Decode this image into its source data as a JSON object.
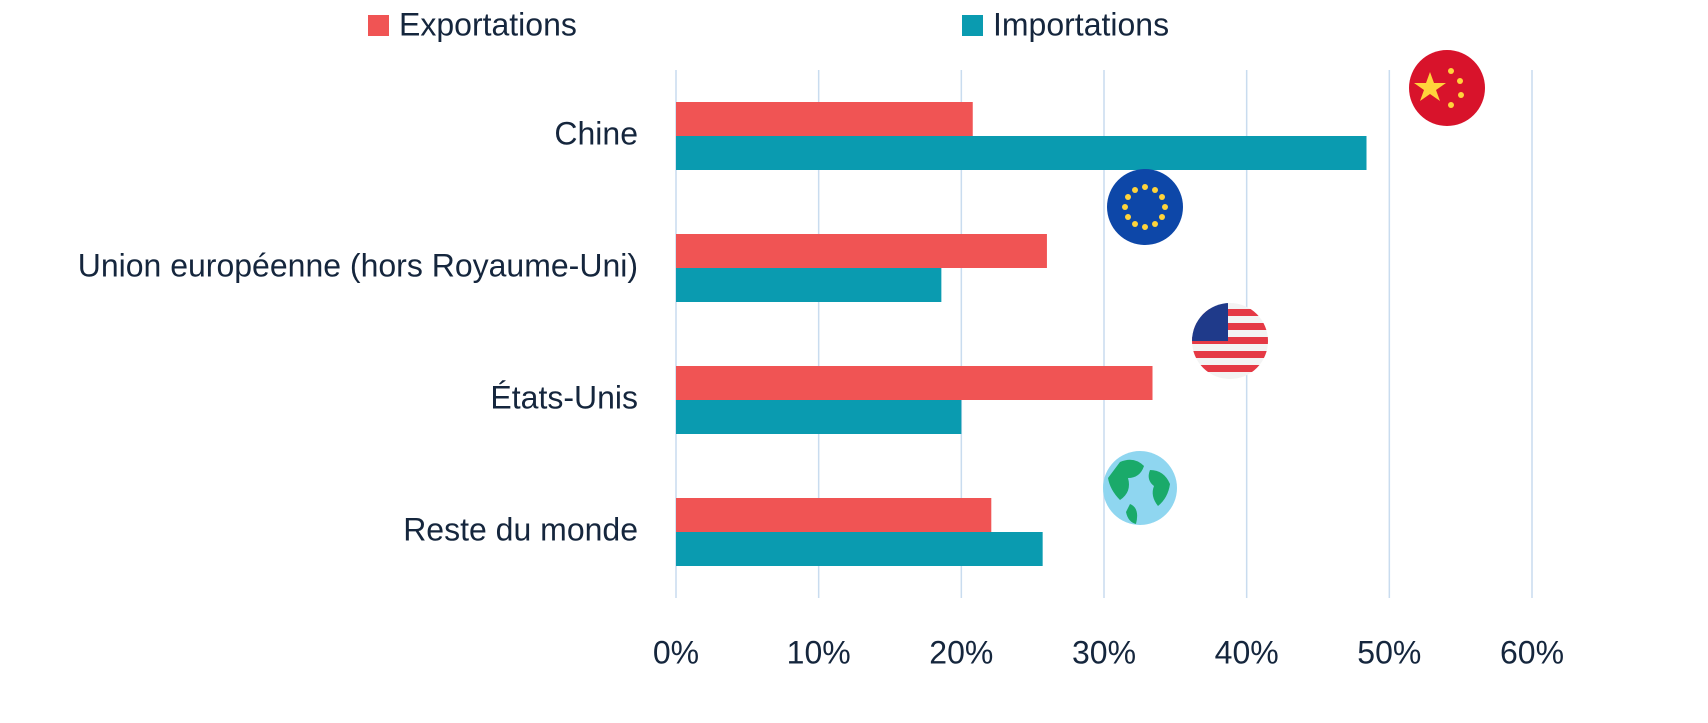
{
  "chart_data": {
    "type": "bar",
    "orientation": "horizontal",
    "categories": [
      "Chine",
      "Union européenne (hors Royaume-Uni)",
      "États-Unis",
      "Reste du monde"
    ],
    "series": [
      {
        "name": "Exportations",
        "color": "#f05454",
        "values": [
          20.8,
          26.0,
          33.4,
          22.1
        ]
      },
      {
        "name": "Importations",
        "color": "#0a9bb0",
        "values": [
          48.4,
          18.6,
          20.0,
          25.7
        ]
      }
    ],
    "xlim": [
      0,
      60
    ],
    "xticks": [
      {
        "value": 0,
        "label": "0%"
      },
      {
        "value": 10,
        "label": "10%"
      },
      {
        "value": 20,
        "label": "20%"
      },
      {
        "value": 30,
        "label": "30%"
      },
      {
        "value": 40,
        "label": "40%"
      },
      {
        "value": 50,
        "label": "50%"
      },
      {
        "value": 60,
        "label": "60%"
      }
    ],
    "grid": true,
    "legend": "top"
  }
}
